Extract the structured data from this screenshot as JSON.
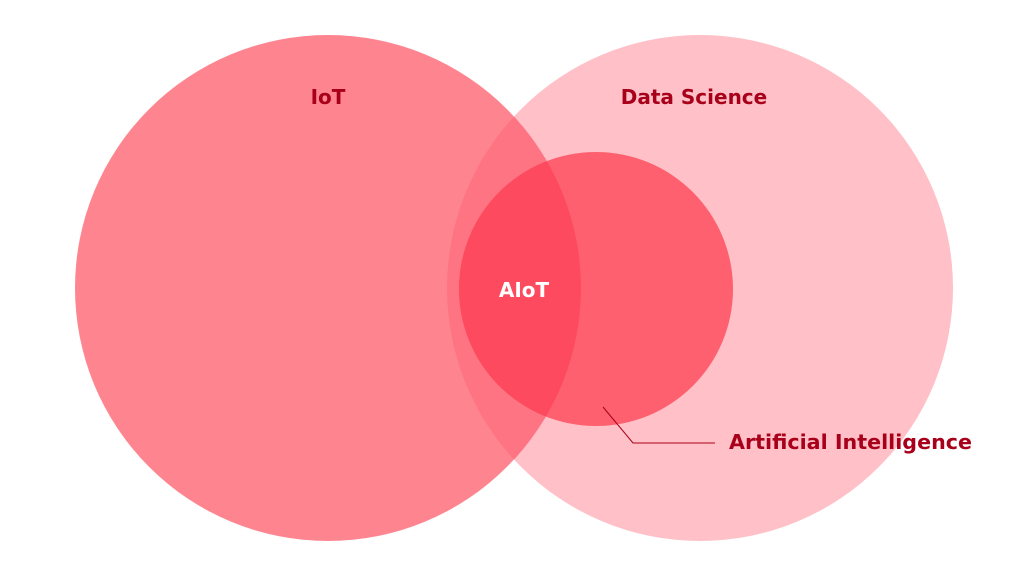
{
  "diagram": {
    "type": "venn",
    "sets": [
      {
        "label": "IoT",
        "color": "#fe8590"
      },
      {
        "label": "Data Science",
        "color": "#ffc0c7"
      },
      {
        "label": "Artificial Intelligence",
        "color": "#fe6070"
      }
    ],
    "intersection": {
      "label": "AIoT",
      "color": "#fd4a5e"
    },
    "label_color": "#a8001a",
    "intersection_label_color": "#ffffff"
  }
}
